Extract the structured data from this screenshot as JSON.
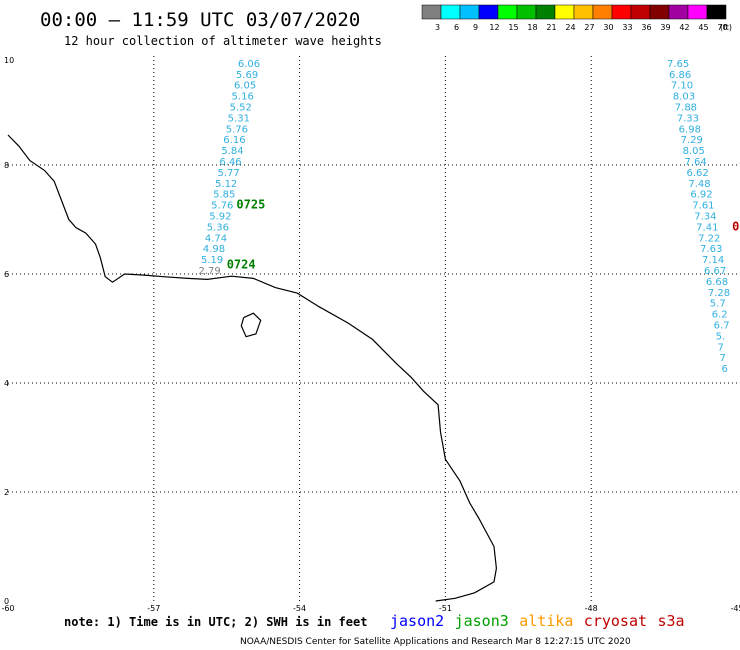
{
  "header": {
    "title": "00:00 – 11:59 UTC 03/07/2020",
    "subtitle": "12 hour collection of altimeter wave heights"
  },
  "legend": {
    "unit": "(ft)",
    "bins": [
      {
        "label": "3",
        "color": "#808080"
      },
      {
        "label": "6",
        "color": "#00ffff"
      },
      {
        "label": "9",
        "color": "#00c0ff"
      },
      {
        "label": "12",
        "color": "#0000ff"
      },
      {
        "label": "15",
        "color": "#00ff00"
      },
      {
        "label": "18",
        "color": "#00c000"
      },
      {
        "label": "21",
        "color": "#008000"
      },
      {
        "label": "24",
        "color": "#ffff00"
      },
      {
        "label": "27",
        "color": "#ffc000"
      },
      {
        "label": "30",
        "color": "#ff8000"
      },
      {
        "label": "33",
        "color": "#ff0000"
      },
      {
        "label": "36",
        "color": "#c00000"
      },
      {
        "label": "39",
        "color": "#800000"
      },
      {
        "label": "42",
        "color": "#a000a0"
      },
      {
        "label": "45",
        "color": "#ff00ff"
      },
      {
        "label": "70",
        "color": "#000000"
      }
    ]
  },
  "axes": {
    "lon": {
      "min": -60,
      "max": -45,
      "ticks": [
        "-60",
        "-57",
        "-54",
        "-51",
        "-48",
        "-45"
      ],
      "tick_values": [
        -60,
        -57,
        -54,
        -51,
        -48,
        -45
      ]
    },
    "lat": {
      "min": 0,
      "max": 10,
      "ticks": [
        "0",
        "2",
        "4",
        "6",
        "8",
        "10"
      ],
      "tick_values": [
        0,
        2,
        4,
        6,
        8,
        10
      ]
    }
  },
  "tracks": [
    {
      "color": "#30b0e0",
      "points": [
        {
          "lon": -55.27,
          "lat": 9.8,
          "swh": "6.06"
        },
        {
          "lon": -55.31,
          "lat": 9.6,
          "swh": "5.69"
        },
        {
          "lon": -55.35,
          "lat": 9.4,
          "swh": "6.05"
        },
        {
          "lon": -55.4,
          "lat": 9.2,
          "swh": "5.16"
        },
        {
          "lon": -55.44,
          "lat": 9.0,
          "swh": "5.52"
        },
        {
          "lon": -55.48,
          "lat": 8.8,
          "swh": "5.31"
        },
        {
          "lon": -55.52,
          "lat": 8.6,
          "swh": "5.76"
        },
        {
          "lon": -55.57,
          "lat": 8.4,
          "swh": "6.16"
        },
        {
          "lon": -55.61,
          "lat": 8.2,
          "swh": "5.84"
        },
        {
          "lon": -55.65,
          "lat": 8.0,
          "swh": "6.46"
        },
        {
          "lon": -55.69,
          "lat": 7.8,
          "swh": "5.77"
        },
        {
          "lon": -55.74,
          "lat": 7.6,
          "swh": "5.12"
        },
        {
          "lon": -55.78,
          "lat": 7.4,
          "swh": "5.85"
        },
        {
          "lon": -55.82,
          "lat": 7.2,
          "swh": "5.76"
        },
        {
          "lon": -55.86,
          "lat": 7.0,
          "swh": "5.92"
        },
        {
          "lon": -55.91,
          "lat": 6.8,
          "swh": "5.36"
        },
        {
          "lon": -55.95,
          "lat": 6.6,
          "swh": "4.74"
        },
        {
          "lon": -55.99,
          "lat": 6.4,
          "swh": "4.98"
        },
        {
          "lon": -56.03,
          "lat": 6.2,
          "swh": "5.19"
        }
      ]
    },
    {
      "color": "#808080",
      "points": [
        {
          "lon": -56.08,
          "lat": 6.0,
          "swh": "2.79"
        }
      ]
    },
    {
      "color": "#30b0e0",
      "points": [
        {
          "lon": -46.44,
          "lat": 9.8,
          "swh": "7.65"
        },
        {
          "lon": -46.4,
          "lat": 9.6,
          "swh": "6.86"
        },
        {
          "lon": -46.36,
          "lat": 9.4,
          "swh": "7.10"
        },
        {
          "lon": -46.32,
          "lat": 9.2,
          "swh": "8.03"
        },
        {
          "lon": -46.28,
          "lat": 9.0,
          "swh": "7.88"
        },
        {
          "lon": -46.24,
          "lat": 8.8,
          "swh": "7.33"
        },
        {
          "lon": -46.2,
          "lat": 8.6,
          "swh": "6.98"
        },
        {
          "lon": -46.16,
          "lat": 8.4,
          "swh": "7.29"
        },
        {
          "lon": -46.12,
          "lat": 8.2,
          "swh": "8.05"
        },
        {
          "lon": -46.08,
          "lat": 8.0,
          "swh": "7.64"
        },
        {
          "lon": -46.04,
          "lat": 7.8,
          "swh": "6.62"
        },
        {
          "lon": -46.0,
          "lat": 7.6,
          "swh": "7.48"
        },
        {
          "lon": -45.96,
          "lat": 7.4,
          "swh": "6.92"
        },
        {
          "lon": -45.92,
          "lat": 7.2,
          "swh": "7.61"
        },
        {
          "lon": -45.88,
          "lat": 7.0,
          "swh": "7.34"
        },
        {
          "lon": -45.84,
          "lat": 6.8,
          "swh": "7.41"
        },
        {
          "lon": -45.8,
          "lat": 6.6,
          "swh": "7.22"
        },
        {
          "lon": -45.76,
          "lat": 6.4,
          "swh": "7.63"
        },
        {
          "lon": -45.72,
          "lat": 6.2,
          "swh": "7.14"
        },
        {
          "lon": -45.68,
          "lat": 6.0,
          "swh": "6.67"
        },
        {
          "lon": -45.64,
          "lat": 5.8,
          "swh": "6.68"
        },
        {
          "lon": -45.6,
          "lat": 5.6,
          "swh": "7.28"
        },
        {
          "lon": -45.56,
          "lat": 5.4,
          "swh": "5.7"
        },
        {
          "lon": -45.52,
          "lat": 5.2,
          "swh": "6.2"
        },
        {
          "lon": -45.48,
          "lat": 5.0,
          "swh": "6.7"
        },
        {
          "lon": -45.44,
          "lat": 4.8,
          "swh": "5."
        },
        {
          "lon": -45.4,
          "lat": 4.6,
          "swh": "7"
        },
        {
          "lon": -45.36,
          "lat": 4.4,
          "swh": "7"
        },
        {
          "lon": -45.32,
          "lat": 4.2,
          "swh": "6"
        }
      ]
    }
  ],
  "pass_labels": [
    {
      "text": "0725",
      "lon": -55.3,
      "lat": 7.2,
      "color": "#008000"
    },
    {
      "text": "0724",
      "lon": -55.5,
      "lat": 6.1,
      "color": "#008000"
    },
    {
      "text": "0",
      "lon": -45.1,
      "lat": 6.8,
      "color": "#c00000"
    }
  ],
  "coastline": [
    [
      -60.0,
      8.55
    ],
    [
      -59.78,
      8.35
    ],
    [
      -59.55,
      8.08
    ],
    [
      -59.25,
      7.9
    ],
    [
      -59.05,
      7.7
    ],
    [
      -58.9,
      7.35
    ],
    [
      -58.75,
      7.0
    ],
    [
      -58.6,
      6.85
    ],
    [
      -58.4,
      6.75
    ],
    [
      -58.2,
      6.55
    ],
    [
      -58.1,
      6.3
    ],
    [
      -58.0,
      5.95
    ],
    [
      -57.85,
      5.85
    ],
    [
      -57.6,
      6.0
    ],
    [
      -57.2,
      5.98
    ],
    [
      -56.8,
      5.95
    ],
    [
      -56.3,
      5.92
    ],
    [
      -55.9,
      5.9
    ],
    [
      -55.4,
      5.96
    ],
    [
      -54.95,
      5.92
    ],
    [
      -54.5,
      5.75
    ],
    [
      -54.05,
      5.65
    ],
    [
      -53.6,
      5.4
    ],
    [
      -53.0,
      5.1
    ],
    [
      -52.5,
      4.8
    ],
    [
      -52.0,
      4.35
    ],
    [
      -51.7,
      4.1
    ],
    [
      -51.45,
      3.85
    ],
    [
      -51.15,
      3.6
    ],
    [
      -51.1,
      3.1
    ],
    [
      -51.0,
      2.6
    ],
    [
      -50.7,
      2.2
    ],
    [
      -50.5,
      1.8
    ],
    [
      -50.3,
      1.5
    ],
    [
      -50.0,
      1.0
    ],
    [
      -49.95,
      0.6
    ],
    [
      -50.0,
      0.35
    ],
    [
      -50.4,
      0.15
    ],
    [
      -50.8,
      0.05
    ],
    [
      -51.2,
      0.0
    ]
  ],
  "island": [
    [
      -55.15,
      5.2
    ],
    [
      -54.95,
      5.28
    ],
    [
      -54.8,
      5.15
    ],
    [
      -54.9,
      4.9
    ],
    [
      -55.1,
      4.85
    ],
    [
      -55.2,
      5.05
    ],
    [
      -55.15,
      5.2
    ]
  ],
  "note": "note: 1) Time is in UTC; 2) SWH is in feet",
  "missions": [
    {
      "name": "jason2",
      "color": "#0000ff"
    },
    {
      "name": "jason3",
      "color": "#00a000"
    },
    {
      "name": "altika",
      "color": "#ff9900"
    },
    {
      "name": "cryosat",
      "color": "#c00000"
    },
    {
      "name": "s3a",
      "color": "#c00000"
    }
  ],
  "footer": "NOAA/NESDIS Center for Satellite Applications and Research    Mar  8 12:27:15 UTC 2020"
}
